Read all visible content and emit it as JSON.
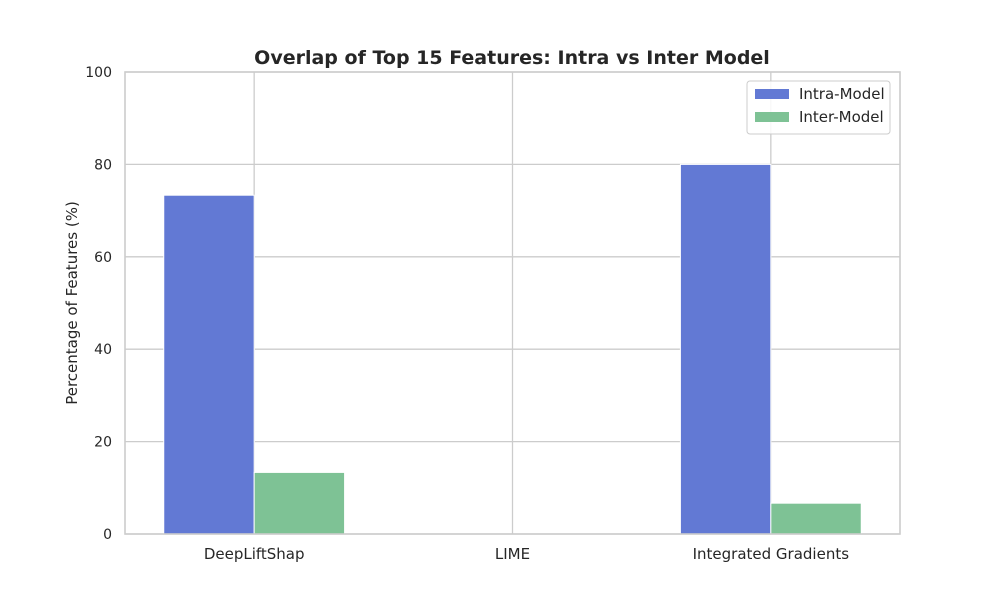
{
  "chart_data": {
    "type": "bar",
    "title": "Overlap of Top 15 Features: Intra vs Inter Model",
    "xlabel": "",
    "ylabel": "Percentage of Features (%)",
    "categories": [
      "DeepLiftShap",
      "LIME",
      "Integrated Gradients"
    ],
    "series": [
      {
        "name": "Intra-Model",
        "values": [
          73.33,
          0,
          80.0
        ],
        "color": "#6279d4"
      },
      {
        "name": "Inter-Model",
        "values": [
          13.33,
          0,
          6.67
        ],
        "color": "#7ec295"
      }
    ],
    "ylim": [
      0,
      100
    ],
    "yticks": [
      0,
      20,
      40,
      60,
      80,
      100
    ],
    "grid": true,
    "legend_position": "top-right"
  }
}
